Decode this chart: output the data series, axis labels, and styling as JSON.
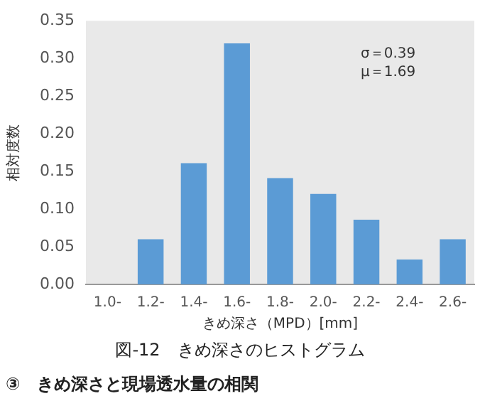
{
  "chart_data": {
    "type": "bar",
    "title": "図-12　きめ深さのヒストグラム",
    "xlabel": "きめ深さ（MPD）[mm]",
    "ylabel": "相対度数",
    "categories": [
      "1.0-",
      "1.2-",
      "1.4-",
      "1.6-",
      "1.8-",
      "2.0-",
      "2.2-",
      "2.4-",
      "2.6-"
    ],
    "values": [
      0,
      0.06,
      0.161,
      0.32,
      0.141,
      0.12,
      0.086,
      0.033,
      0.06
    ],
    "color": "#5b9bd5",
    "ylim": [
      0,
      0.35
    ],
    "yticks": [
      {
        "value": 0,
        "label": "0.00"
      },
      {
        "value": 0.05,
        "label": "0.05"
      },
      {
        "value": 0.1,
        "label": "0.10"
      },
      {
        "value": 0.15,
        "label": "0.15"
      },
      {
        "value": 0.2,
        "label": "0.20"
      },
      {
        "value": 0.25,
        "label": "0.25"
      },
      {
        "value": 0.3,
        "label": "0.30"
      },
      {
        "value": 0.35,
        "label": "0.35"
      }
    ],
    "grid": false,
    "legend": false,
    "annotations": [
      "σ＝0.39",
      "μ＝1.69",
      "③　きめ深さと現場透水量の相関"
    ]
  }
}
